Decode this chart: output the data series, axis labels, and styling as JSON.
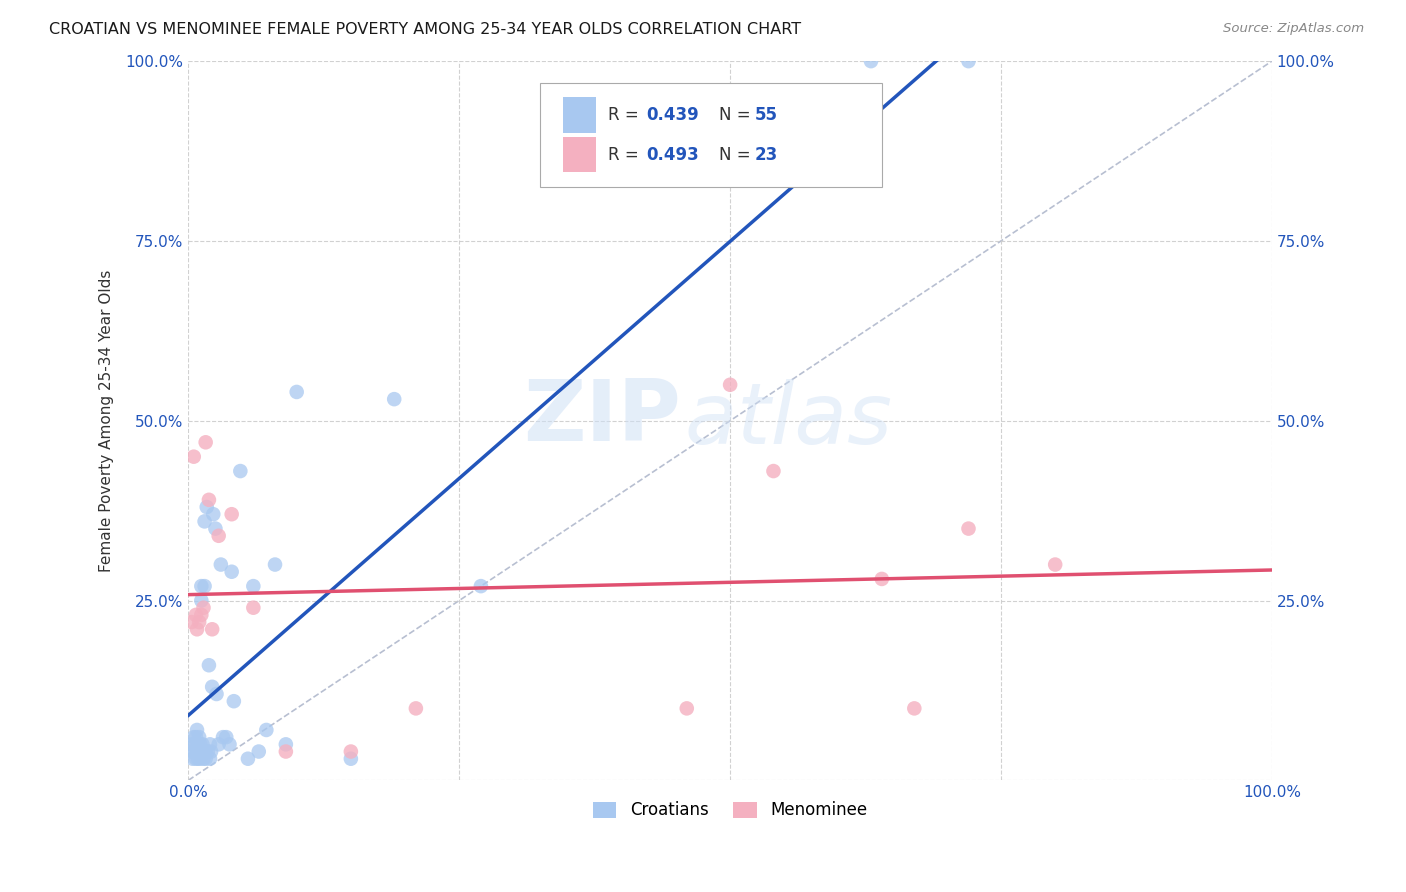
{
  "title": "CROATIAN VS MENOMINEE FEMALE POVERTY AMONG 25-34 YEAR OLDS CORRELATION CHART",
  "source": "Source: ZipAtlas.com",
  "ylabel": "Female Poverty Among 25-34 Year Olds",
  "xlim": [
    0,
    1.0
  ],
  "ylim": [
    0,
    1.0
  ],
  "xticks": [
    0.0,
    0.25,
    0.5,
    0.75,
    1.0
  ],
  "yticks": [
    0.0,
    0.25,
    0.5,
    0.75,
    1.0
  ],
  "croatian_R": 0.439,
  "croatian_N": 55,
  "menominee_R": 0.493,
  "menominee_N": 23,
  "croatian_color": "#a8c8f0",
  "menominee_color": "#f4b0c0",
  "trend_line_croatian_color": "#2255bb",
  "trend_line_menominee_color": "#e05070",
  "diagonal_color": "#b0b8cc",
  "background_color": "#ffffff",
  "grid_color": "#cccccc",
  "watermark_zip": "ZIP",
  "watermark_atlas": "atlas",
  "croatian_x": [
    0.002,
    0.003,
    0.004,
    0.005,
    0.006,
    0.006,
    0.007,
    0.007,
    0.008,
    0.008,
    0.009,
    0.009,
    0.01,
    0.01,
    0.011,
    0.011,
    0.012,
    0.012,
    0.013,
    0.013,
    0.014,
    0.015,
    0.015,
    0.016,
    0.016,
    0.017,
    0.018,
    0.019,
    0.02,
    0.02,
    0.021,
    0.022,
    0.023,
    0.025,
    0.026,
    0.028,
    0.03,
    0.032,
    0.035,
    0.038,
    0.04,
    0.042,
    0.048,
    0.055,
    0.06,
    0.065,
    0.072,
    0.08,
    0.09,
    0.1,
    0.15,
    0.19,
    0.27,
    0.63,
    0.72
  ],
  "croatian_y": [
    0.04,
    0.05,
    0.03,
    0.06,
    0.04,
    0.05,
    0.03,
    0.06,
    0.07,
    0.04,
    0.03,
    0.05,
    0.04,
    0.06,
    0.05,
    0.03,
    0.25,
    0.27,
    0.04,
    0.05,
    0.03,
    0.36,
    0.27,
    0.03,
    0.04,
    0.38,
    0.04,
    0.16,
    0.03,
    0.05,
    0.04,
    0.13,
    0.37,
    0.35,
    0.12,
    0.05,
    0.3,
    0.06,
    0.06,
    0.05,
    0.29,
    0.11,
    0.43,
    0.03,
    0.27,
    0.04,
    0.07,
    0.3,
    0.05,
    0.54,
    0.03,
    0.53,
    0.27,
    1.0,
    1.0
  ],
  "menominee_x": [
    0.003,
    0.005,
    0.007,
    0.008,
    0.01,
    0.012,
    0.014,
    0.016,
    0.019,
    0.022,
    0.028,
    0.04,
    0.06,
    0.09,
    0.15,
    0.21,
    0.46,
    0.5,
    0.54,
    0.64,
    0.67,
    0.72,
    0.8
  ],
  "menominee_y": [
    0.22,
    0.45,
    0.23,
    0.21,
    0.22,
    0.23,
    0.24,
    0.47,
    0.39,
    0.21,
    0.34,
    0.37,
    0.24,
    0.04,
    0.04,
    0.1,
    0.1,
    0.55,
    0.43,
    0.28,
    0.1,
    0.35,
    0.3
  ],
  "trend_croatian_x0": 0.0,
  "trend_croatian_x1": 1.0,
  "trend_menominee_x0": 0.0,
  "trend_menominee_x1": 1.0
}
